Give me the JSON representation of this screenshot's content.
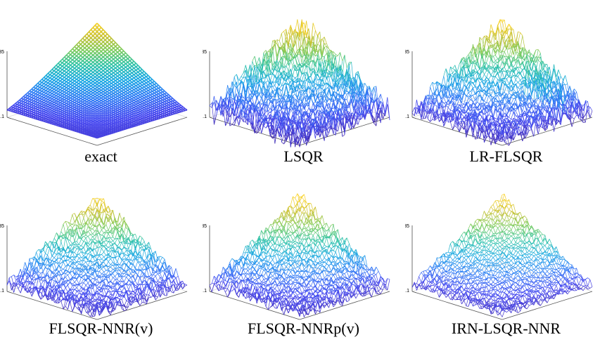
{
  "figure": {
    "panels": [
      {
        "id": "exact",
        "caption": "exact",
        "surface": "exact",
        "ztick_top": "0.35",
        "ztick_bottom": "-0.1"
      },
      {
        "id": "lsqr",
        "caption": "LSQR",
        "surface": "noisy-heavy",
        "ztick_top": "0.35",
        "ztick_bottom": "-0.1"
      },
      {
        "id": "lr-flsqr",
        "caption": "LR-FLSQR",
        "surface": "noisy-medium",
        "ztick_top": "0.35",
        "ztick_bottom": "-0.1"
      },
      {
        "id": "flsqr-nnr-v",
        "caption": "FLSQR-NNR(v)",
        "surface": "noisy-light",
        "ztick_top": "0.35",
        "ztick_bottom": "-0.1"
      },
      {
        "id": "flsqr-nnrp-v",
        "caption": "FLSQR-NNRp(v)",
        "surface": "noisy-light",
        "ztick_top": "0.35",
        "ztick_bottom": "-0.1"
      },
      {
        "id": "irn-lsqr-nnr",
        "caption": "IRN-LSQR-NNR",
        "surface": "noisy-smooth",
        "ztick_top": "0.35",
        "ztick_bottom": "-0.1"
      }
    ],
    "colormap": [
      "#3e26a8",
      "#4748f0",
      "#2f7ef5",
      "#1aa9e2",
      "#2ec3a6",
      "#7bcb5b",
      "#c8c02f",
      "#f9d120"
    ]
  }
}
